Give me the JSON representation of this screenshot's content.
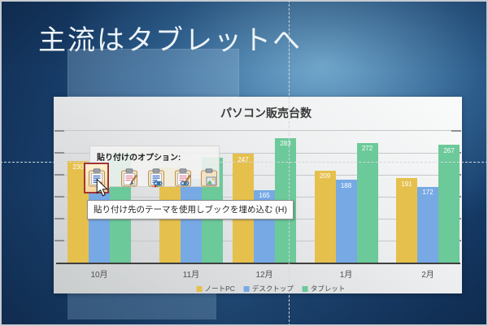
{
  "slide": {
    "title": "主流はタブレットへ"
  },
  "chart_data": {
    "type": "bar",
    "title": "パソコン販売台数",
    "categories": [
      "10月",
      "11月",
      "12月",
      "1月",
      "2月"
    ],
    "series": [
      {
        "name": "ノートPC",
        "color": "#e6c04d",
        "values": [
          230,
          215,
          247,
          209,
          191
        ],
        "labels": [
          "230",
          null,
          "247",
          "209",
          "191"
        ]
      },
      {
        "name": "デスクトップ",
        "color": "#77a9e5",
        "values": [
          170,
          190,
          165,
          188,
          172
        ],
        "labels": [
          null,
          null,
          "165",
          "188",
          "172"
        ]
      },
      {
        "name": "タブレット",
        "color": "#6cc99a",
        "values": [
          250,
          238,
          283,
          272,
          267
        ],
        "labels": [
          null,
          null,
          "283",
          "272",
          "267"
        ]
      }
    ],
    "ylim": [
      0,
      300
    ],
    "gridline_step": 50,
    "y_axis_labels_visible": false,
    "legend_position": "bottom",
    "grid": true
  },
  "paste_options": {
    "label": "貼り付けのオプション:",
    "tooltip": "貼り付け先のテーマを使用しブックを埋め込む (H)",
    "selection_color": "#a23531",
    "options": [
      {
        "name": "use-destination-theme-embed-workbook",
        "selected": true
      },
      {
        "name": "keep-source-formatting-embed-workbook",
        "selected": false
      },
      {
        "name": "use-destination-theme-link-data",
        "selected": false
      },
      {
        "name": "keep-source-formatting-link-data",
        "selected": false
      },
      {
        "name": "picture",
        "selected": false
      }
    ]
  },
  "guides": {
    "color": "#d2d8dd"
  }
}
